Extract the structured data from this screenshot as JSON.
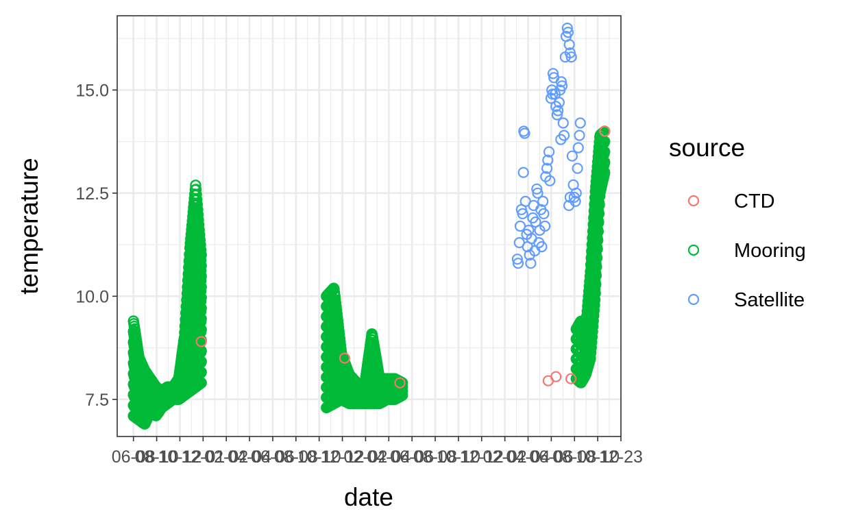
{
  "chart_data": {
    "type": "scatter",
    "xlabel": "date",
    "ylabel": "temperature",
    "ylim": [
      6.6,
      16.8
    ],
    "y_ticks": [
      "7.5",
      "10.0",
      "12.5",
      "15.0"
    ],
    "y_tick_values": [
      7.5,
      10.0,
      12.5,
      15.0
    ],
    "x_tick_labels": [
      "06-08",
      "08-10",
      "10-12",
      "12-01",
      "02-02",
      "04-04",
      "06-06",
      "08-08",
      "10-10",
      "12-12",
      "02-02",
      "04-04",
      "06-06",
      "08-08",
      "10-10",
      "12-12",
      "02-02",
      "04-04",
      "06-06",
      "08-08",
      "10-10",
      "12-23"
    ],
    "grid": true,
    "legend": {
      "title": "source",
      "position": "right"
    },
    "colors": {
      "CTD": "#F8766D",
      "Mooring": "#00BA38",
      "Satellite": "#619CFF"
    },
    "series": [
      {
        "name": "CTD",
        "points": [
          {
            "x": 17.7,
            "y": 8.9
          },
          {
            "x": 53.0,
            "y": 8.5
          },
          {
            "x": 66.6,
            "y": 7.9
          },
          {
            "x": 103.1,
            "y": 7.95
          },
          {
            "x": 105.0,
            "y": 8.05
          },
          {
            "x": 108.7,
            "y": 8.0
          },
          {
            "x": 117.0,
            "y": 14.0
          }
        ]
      },
      {
        "name": "Mooring",
        "segments": [
          {
            "x_from": 1.0,
            "x_to": 17.7,
            "min": [
              7.1,
              7.0,
              6.9,
              7.2,
              7.1,
              7.3,
              7.4,
              7.5,
              7.5,
              7.6,
              7.7,
              7.8,
              7.9
            ],
            "max": [
              9.4,
              8.5,
              8.2,
              8.0,
              7.8,
              7.7,
              7.8,
              7.8,
              8.0,
              9.0,
              11.2,
              12.7,
              11.0
            ]
          },
          {
            "x_from": 48.5,
            "x_to": 67.2,
            "min": [
              7.3,
              7.4,
              7.5,
              7.4,
              7.4,
              7.4,
              7.4,
              7.4,
              7.5,
              7.5,
              7.6
            ],
            "max": [
              10.0,
              10.2,
              8.6,
              8.1,
              7.9,
              7.8,
              9.1,
              8.0,
              8.0,
              8.0,
              7.9
            ]
          },
          {
            "x_from": 110.0,
            "x_to": 117.0,
            "min": [
              8.0,
              7.9,
              8.1,
              8.5,
              10.0,
              12.5,
              13.0
            ],
            "max": [
              9.2,
              9.4,
              9.2,
              10.6,
              12.5,
              13.9,
              14.0
            ]
          }
        ]
      },
      {
        "name": "Satellite",
        "points": [
          {
            "x": 95.5,
            "y": 10.9
          },
          {
            "x": 95.7,
            "y": 10.8
          },
          {
            "x": 96.0,
            "y": 11.3
          },
          {
            "x": 96.2,
            "y": 11.7
          },
          {
            "x": 96.5,
            "y": 12.1
          },
          {
            "x": 96.8,
            "y": 12.0
          },
          {
            "x": 97.0,
            "y": 13.0
          },
          {
            "x": 97.1,
            "y": 14.0
          },
          {
            "x": 97.3,
            "y": 13.95
          },
          {
            "x": 97.5,
            "y": 12.3
          },
          {
            "x": 97.8,
            "y": 11.5
          },
          {
            "x": 98.0,
            "y": 11.2
          },
          {
            "x": 98.3,
            "y": 11.6
          },
          {
            "x": 98.5,
            "y": 11.0
          },
          {
            "x": 98.8,
            "y": 10.8
          },
          {
            "x": 99.0,
            "y": 11.4
          },
          {
            "x": 99.3,
            "y": 11.9
          },
          {
            "x": 99.5,
            "y": 12.2
          },
          {
            "x": 99.8,
            "y": 11.1
          },
          {
            "x": 100.0,
            "y": 11.8
          },
          {
            "x": 100.3,
            "y": 12.6
          },
          {
            "x": 100.5,
            "y": 12.5
          },
          {
            "x": 100.8,
            "y": 11.3
          },
          {
            "x": 101.0,
            "y": 11.6
          },
          {
            "x": 101.3,
            "y": 12.1
          },
          {
            "x": 101.5,
            "y": 11.2
          },
          {
            "x": 101.8,
            "y": 12.3
          },
          {
            "x": 102.0,
            "y": 12.0
          },
          {
            "x": 102.3,
            "y": 11.7
          },
          {
            "x": 102.5,
            "y": 12.9
          },
          {
            "x": 102.8,
            "y": 13.1
          },
          {
            "x": 103.0,
            "y": 13.3
          },
          {
            "x": 103.3,
            "y": 13.5
          },
          {
            "x": 103.5,
            "y": 12.8
          },
          {
            "x": 103.8,
            "y": 14.8
          },
          {
            "x": 104.0,
            "y": 15.0
          },
          {
            "x": 104.3,
            "y": 15.4
          },
          {
            "x": 104.5,
            "y": 15.3
          },
          {
            "x": 104.8,
            "y": 14.9
          },
          {
            "x": 105.0,
            "y": 14.6
          },
          {
            "x": 105.3,
            "y": 14.4
          },
          {
            "x": 105.5,
            "y": 14.5
          },
          {
            "x": 105.8,
            "y": 14.7
          },
          {
            "x": 106.0,
            "y": 15.0
          },
          {
            "x": 106.3,
            "y": 15.2
          },
          {
            "x": 106.5,
            "y": 15.1
          },
          {
            "x": 106.8,
            "y": 14.2
          },
          {
            "x": 107.0,
            "y": 13.9
          },
          {
            "x": 107.3,
            "y": 15.8
          },
          {
            "x": 107.5,
            "y": 16.3
          },
          {
            "x": 107.8,
            "y": 16.5
          },
          {
            "x": 108.0,
            "y": 16.4
          },
          {
            "x": 108.3,
            "y": 16.1
          },
          {
            "x": 108.5,
            "y": 15.9
          },
          {
            "x": 108.8,
            "y": 15.8
          },
          {
            "x": 109.0,
            "y": 13.4
          },
          {
            "x": 109.3,
            "y": 12.7
          },
          {
            "x": 109.5,
            "y": 12.4
          },
          {
            "x": 109.8,
            "y": 12.3
          },
          {
            "x": 110.0,
            "y": 12.5
          },
          {
            "x": 110.3,
            "y": 13.1
          },
          {
            "x": 110.5,
            "y": 13.6
          },
          {
            "x": 110.8,
            "y": 13.9
          },
          {
            "x": 111.0,
            "y": 14.2
          },
          {
            "x": 108.5,
            "y": 12.4
          },
          {
            "x": 108.2,
            "y": 12.2
          },
          {
            "x": 106.2,
            "y": 13.8
          },
          {
            "x": 104.2,
            "y": 14.9
          }
        ]
      }
    ]
  }
}
